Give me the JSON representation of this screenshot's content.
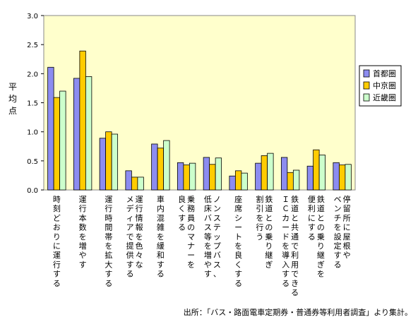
{
  "chart_data": {
    "type": "bar",
    "ylabel": "平均点",
    "ylim": [
      0,
      3.0
    ],
    "yticks": [
      "0.0",
      "0.5",
      "1.0",
      "1.5",
      "2.0",
      "2.5",
      "3.0"
    ],
    "grid": false,
    "legend_position": "right",
    "categories": [
      [
        "時刻どおりに運行する"
      ],
      [
        "運行本数を増やす"
      ],
      [
        "運行時間帯を拡大する"
      ],
      [
        "運行情報を色々な",
        "メディアで提供する"
      ],
      [
        "車内混雑を緩和する"
      ],
      [
        "乗務員のマナーを",
        "良くする"
      ],
      [
        "ノンステップバス、",
        "低床バス等を増やす"
      ],
      [
        "座席シートを良くする"
      ],
      [
        "鉄道との乗り継ぎ",
        "割引を行う"
      ],
      [
        "鉄道と共通で利用できる",
        "ＩＣカードを導入する"
      ],
      [
        "鉄道との乗り継ぎを",
        "便利にする"
      ],
      [
        "停留所に屋根や",
        "ベンチを設定する"
      ]
    ],
    "series": [
      {
        "name": "首都圏",
        "color": "#8c8cf0",
        "values": [
          2.11,
          1.92,
          0.89,
          0.33,
          0.79,
          0.47,
          0.56,
          0.24,
          0.46,
          0.56,
          0.41,
          0.47
        ]
      },
      {
        "name": "中京圏",
        "color": "#ffcc00",
        "values": [
          1.59,
          2.39,
          1.0,
          0.22,
          0.72,
          0.43,
          0.44,
          0.33,
          0.59,
          0.3,
          0.69,
          0.43
        ]
      },
      {
        "name": "近畿圏",
        "color": "#ccffcc",
        "values": [
          1.7,
          1.95,
          0.96,
          0.22,
          0.85,
          0.46,
          0.55,
          0.29,
          0.63,
          0.34,
          0.6,
          0.44
        ]
      }
    ]
  },
  "source_note": "出所：「バス・路面電車定期券・普通券等利用者調査」より集計。"
}
